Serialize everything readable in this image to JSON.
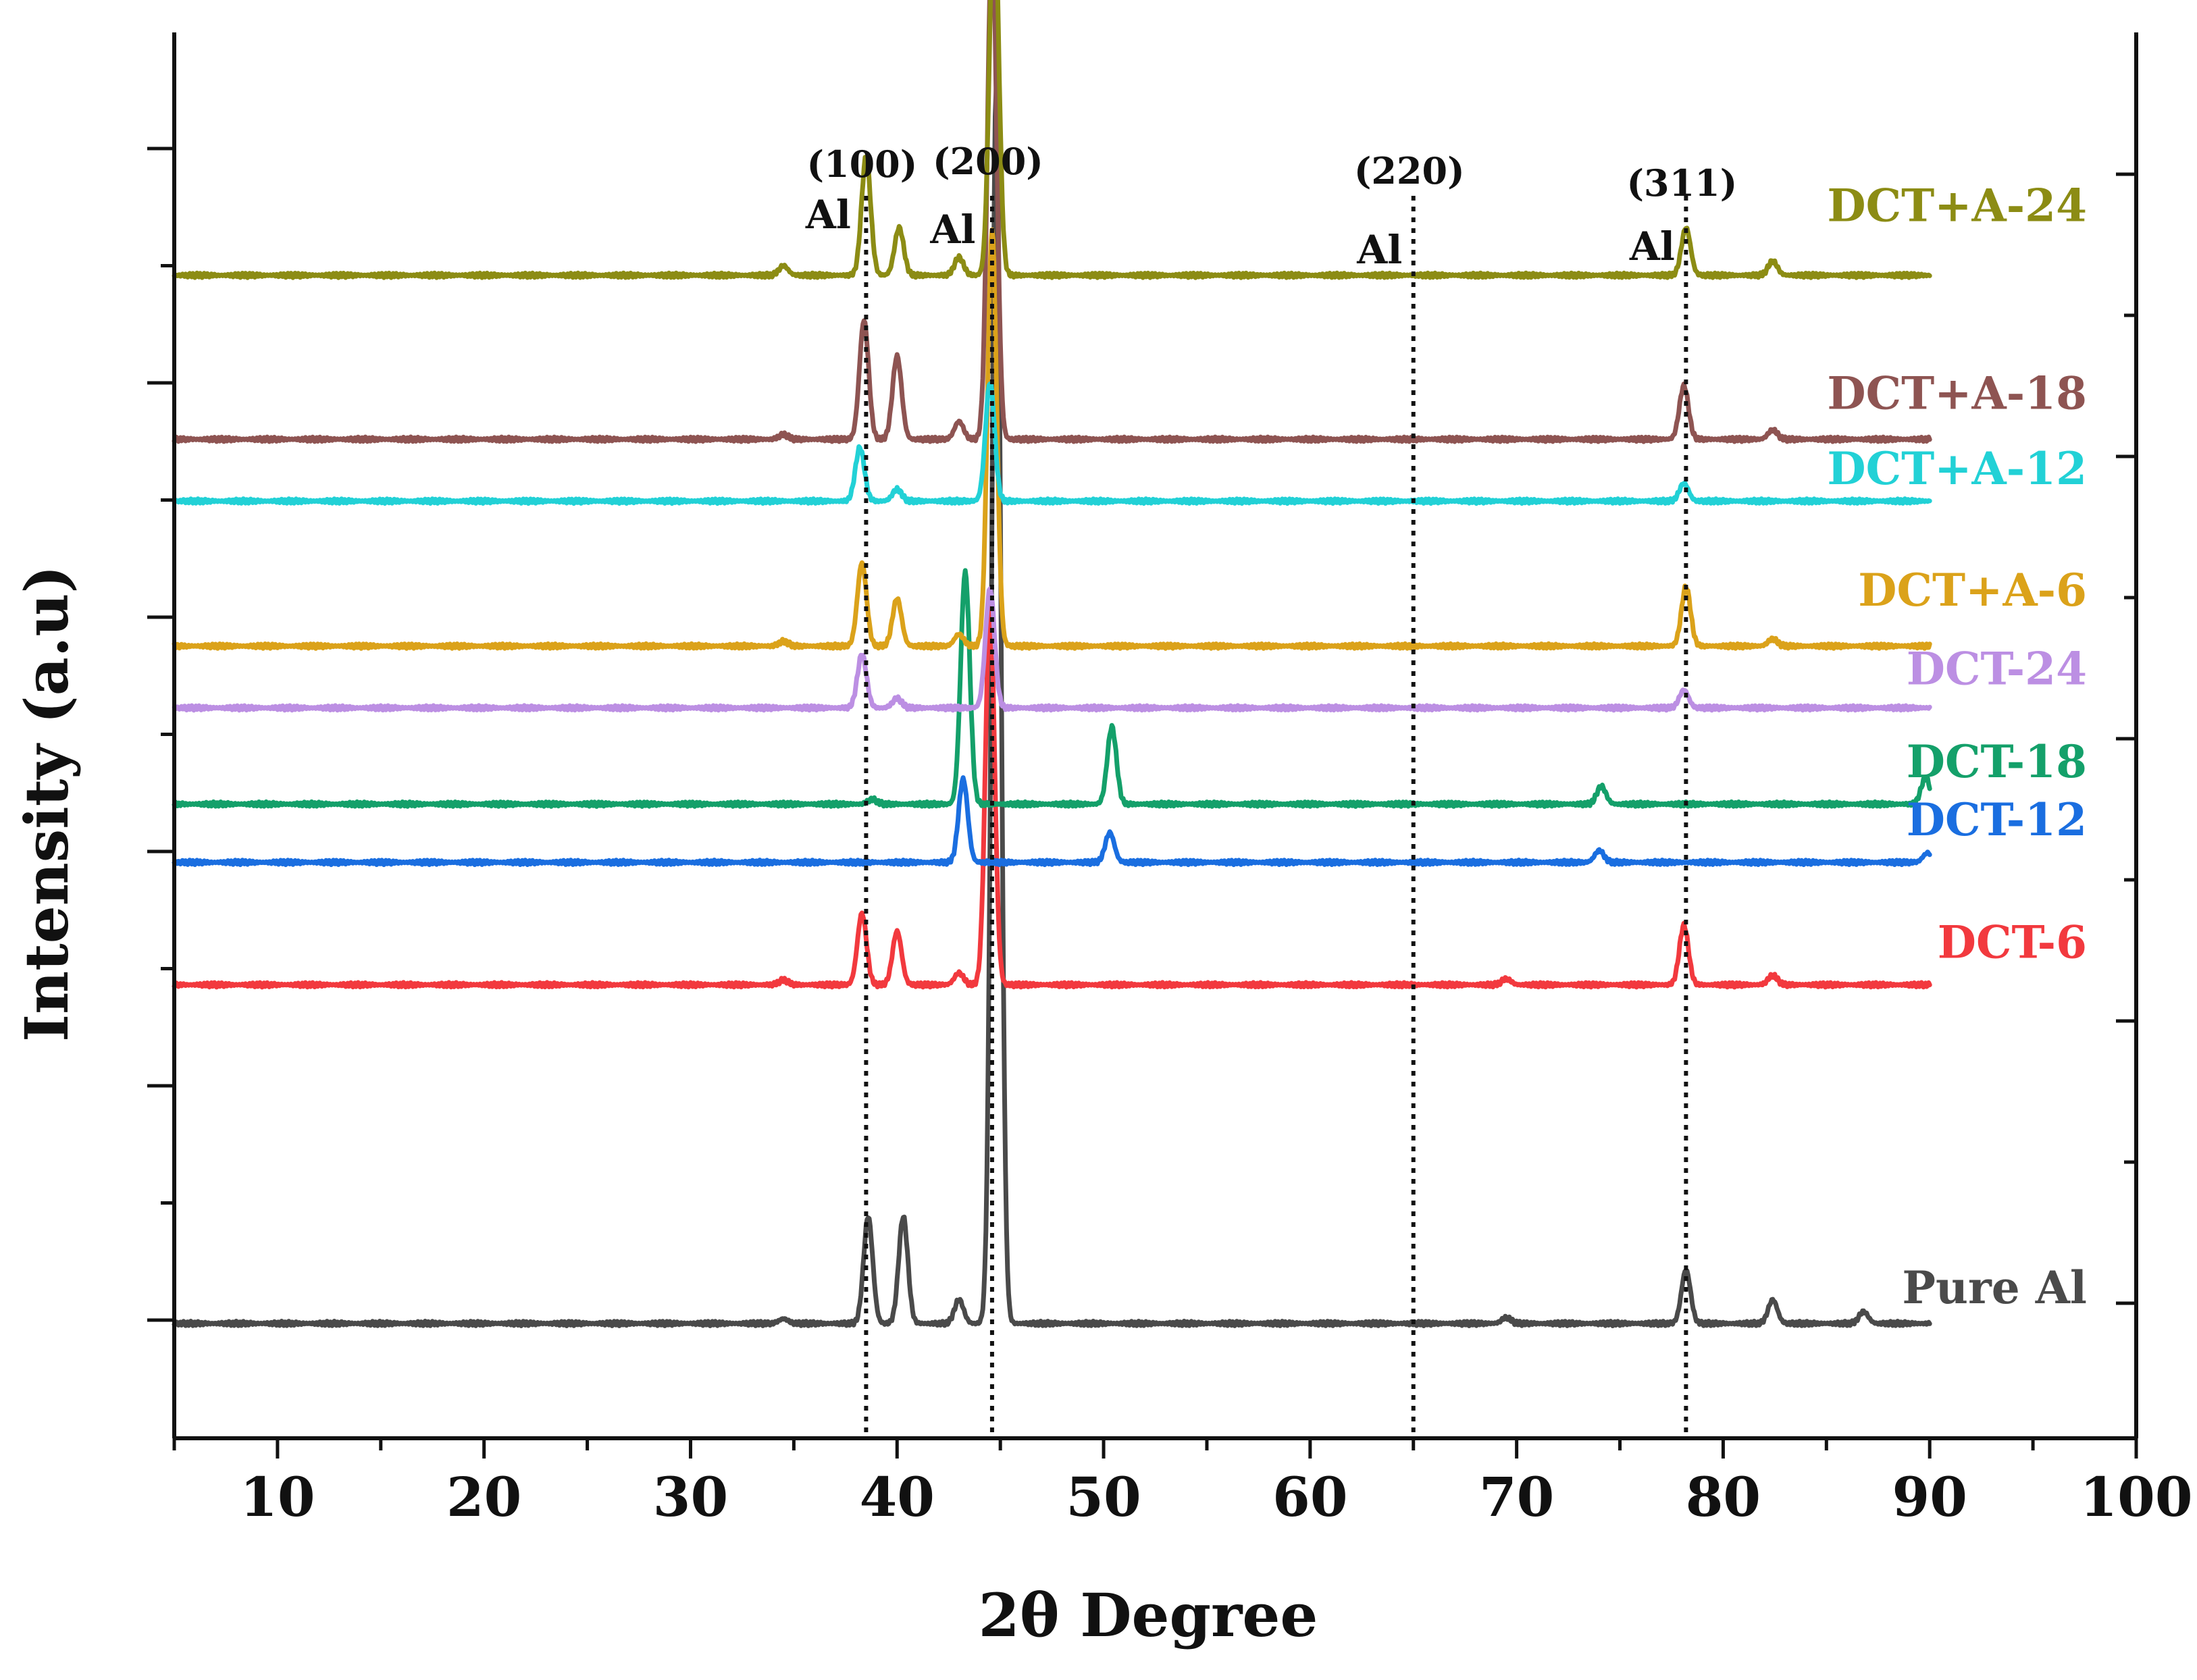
{
  "chart_data": {
    "type": "line",
    "title": "",
    "xlabel": "2θ Degree",
    "ylabel": "Intensity (a.u)",
    "xlim": [
      5,
      100
    ],
    "xticks": [
      "10",
      "20",
      "30",
      "40",
      "50",
      "60",
      "70",
      "80",
      "90",
      "100"
    ],
    "y_ticks_labeled": false,
    "grid": false,
    "legend": "inline-right",
    "reference_lines": [
      {
        "x": 38.5,
        "hkl": "(100)",
        "element": "Al"
      },
      {
        "x": 44.6,
        "hkl": "(200)",
        "element": "Al"
      },
      {
        "x": 65.0,
        "hkl": "(220)",
        "element": "Al"
      },
      {
        "x": 78.2,
        "hkl": "(311)",
        "element": "Al"
      }
    ],
    "series": [
      {
        "name": "Pure Al",
        "color": "#4a4a4a",
        "baseline": 0.0,
        "peaks": [
          [
            34.5,
            0.04
          ],
          [
            38.6,
            0.9
          ],
          [
            40.3,
            0.9
          ],
          [
            43.0,
            0.2
          ],
          [
            44.8,
            10.4
          ],
          [
            69.5,
            0.05
          ],
          [
            78.2,
            0.45
          ],
          [
            82.4,
            0.2
          ],
          [
            86.8,
            0.1
          ]
        ]
      },
      {
        "name": "DCT-6",
        "color": "#f2393e",
        "baseline": 2.85,
        "peaks": [
          [
            34.5,
            0.04
          ],
          [
            38.3,
            0.6
          ],
          [
            40.0,
            0.45
          ],
          [
            43.0,
            0.1
          ],
          [
            44.5,
            3.2
          ],
          [
            69.5,
            0.05
          ],
          [
            78.1,
            0.5
          ],
          [
            82.4,
            0.08
          ]
        ]
      },
      {
        "name": "DCT-12",
        "color": "#1a6ee0",
        "baseline": 3.88,
        "peaks": [
          [
            43.2,
            0.7
          ],
          [
            50.3,
            0.25
          ],
          [
            74.0,
            0.1
          ],
          [
            89.9,
            0.08
          ]
        ]
      },
      {
        "name": "DCT-18",
        "color": "#14a06a",
        "baseline": 4.37,
        "peaks": [
          [
            38.8,
            0.04
          ],
          [
            43.3,
            1.95
          ],
          [
            50.4,
            0.65
          ],
          [
            74.1,
            0.15
          ],
          [
            89.8,
            0.22
          ]
        ]
      },
      {
        "name": "DCT-24",
        "color": "#bc8fe3",
        "baseline": 5.18,
        "peaks": [
          [
            38.3,
            0.45
          ],
          [
            40.0,
            0.08
          ],
          [
            44.5,
            1.0
          ],
          [
            78.1,
            0.15
          ]
        ]
      },
      {
        "name": "DCT+A-6",
        "color": "#dba21a",
        "baseline": 5.7,
        "peaks": [
          [
            34.5,
            0.04
          ],
          [
            38.3,
            0.7
          ],
          [
            40.0,
            0.4
          ],
          [
            43.0,
            0.1
          ],
          [
            44.6,
            3.5
          ],
          [
            78.2,
            0.5
          ],
          [
            82.4,
            0.06
          ]
        ]
      },
      {
        "name": "DCT+A-12",
        "color": "#22d1d6",
        "baseline": 6.92,
        "peaks": [
          [
            38.2,
            0.45
          ],
          [
            40.0,
            0.1
          ],
          [
            44.5,
            1.0
          ],
          [
            78.1,
            0.15
          ]
        ]
      },
      {
        "name": "DCT+A-18",
        "color": "#8e5452",
        "baseline": 7.44,
        "peaks": [
          [
            34.5,
            0.04
          ],
          [
            38.4,
            1.0
          ],
          [
            40.0,
            0.7
          ],
          [
            43.0,
            0.15
          ],
          [
            44.6,
            4.3
          ],
          [
            78.1,
            0.45
          ],
          [
            82.4,
            0.08
          ]
        ]
      },
      {
        "name": "DCT+A-24",
        "color": "#8c8c14",
        "baseline": 8.82,
        "peaks": [
          [
            34.5,
            0.08
          ],
          [
            38.5,
            1.0
          ],
          [
            40.1,
            0.4
          ],
          [
            43.0,
            0.15
          ],
          [
            44.7,
            3.2
          ],
          [
            78.2,
            0.4
          ],
          [
            82.4,
            0.12
          ]
        ]
      }
    ]
  }
}
